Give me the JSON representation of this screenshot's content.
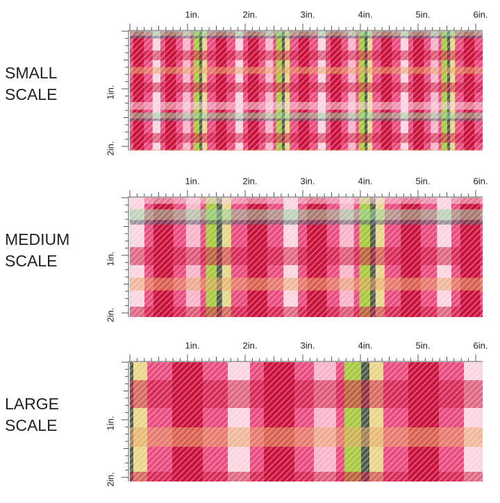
{
  "sections": [
    {
      "label": [
        "SMALL",
        "SCALE"
      ],
      "top_ruler": [
        "1in.",
        "2in.",
        "3in.",
        "4in.",
        "5in.",
        "6in."
      ],
      "side_ruler": [
        "1in.",
        "2in."
      ]
    },
    {
      "label": [
        "MEDIUM",
        "SCALE"
      ],
      "top_ruler": [
        "1in.",
        "2in.",
        "3in.",
        "4in.",
        "5in.",
        "6in."
      ],
      "side_ruler": [
        "1in.",
        "2in."
      ]
    },
    {
      "label": [
        "LARGE",
        "SCALE"
      ],
      "top_ruler": [
        "1in.",
        "2in.",
        "3in.",
        "4in.",
        "5in.",
        "6in."
      ],
      "side_ruler": [
        "1in.",
        "2in."
      ]
    }
  ]
}
